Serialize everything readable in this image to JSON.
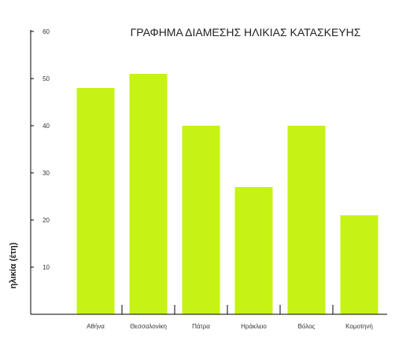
{
  "chart_data": {
    "type": "bar",
    "title": "ΓΡΑΦΗΜΑ ΔΙΑΜΕΣΗΣ ΗΛΙΚΙΑΣ ΚΑΤΑΣΚΕΥΗΣ",
    "xlabel": "",
    "ylabel": "ηλικία (έτη)",
    "categories": [
      "Αθήνα",
      "Θεσσαλονίκη",
      "Πάτρα",
      "Ηράκλειο",
      "Βόλος",
      "Κομοτηνή"
    ],
    "values": [
      48,
      51,
      40,
      27,
      40,
      21
    ],
    "ylim": [
      0,
      60
    ],
    "yticks": [
      10,
      20,
      30,
      40,
      50,
      60
    ],
    "grid": false,
    "bar_color": "#c6f314"
  }
}
